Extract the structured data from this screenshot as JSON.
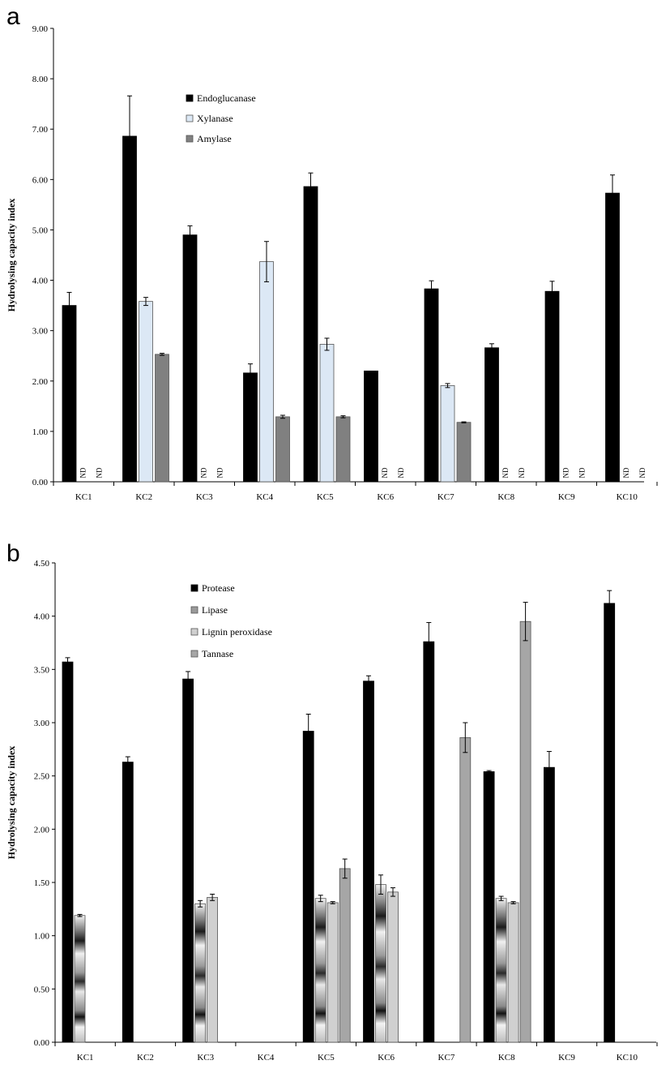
{
  "chart_data": [
    {
      "panel_label": "a",
      "type": "bar",
      "ylabel": "Hydrolysing capacity index",
      "ylim": [
        0,
        9
      ],
      "yticks": [
        "0.00",
        "1.00",
        "2.00",
        "3.00",
        "4.00",
        "5.00",
        "6.00",
        "7.00",
        "8.00",
        "9.00"
      ],
      "categories": [
        "KC1",
        "KC2",
        "KC3",
        "KC4",
        "KC5",
        "KC6",
        "KC7",
        "KC8",
        "KC9",
        "KC10"
      ],
      "not_detected_label": "ND",
      "legend_placement": "upper-left",
      "series": [
        {
          "name": "Endoglucanase",
          "color": "#000000",
          "values": [
            3.5,
            6.86,
            4.9,
            2.16,
            5.86,
            2.2,
            3.83,
            2.66,
            3.78,
            5.73
          ],
          "errors": [
            0.26,
            0.8,
            0.18,
            0.18,
            0.27,
            0.0,
            0.16,
            0.08,
            0.2,
            0.36
          ]
        },
        {
          "name": "Xylanase",
          "color": "#dce8f5",
          "values": [
            null,
            3.58,
            null,
            4.37,
            2.73,
            null,
            1.91,
            null,
            null,
            null
          ],
          "errors": [
            null,
            0.08,
            null,
            0.4,
            0.12,
            null,
            0.04,
            null,
            null,
            null
          ]
        },
        {
          "name": "Amylase",
          "color": "#808080",
          "values": [
            null,
            2.53,
            null,
            1.29,
            1.29,
            null,
            1.18,
            null,
            null,
            null
          ],
          "errors": [
            null,
            0.02,
            null,
            0.03,
            0.02,
            null,
            0.01,
            null,
            null,
            null
          ]
        }
      ]
    },
    {
      "panel_label": "b",
      "type": "bar",
      "ylabel": "Hydrolysing capacity index",
      "ylim": [
        0,
        4.5
      ],
      "yticks": [
        "0.00",
        "0.50",
        "1.00",
        "1.50",
        "2.00",
        "2.50",
        "3.00",
        "3.50",
        "4.00",
        "4.50"
      ],
      "categories": [
        "KC1",
        "KC2",
        "KC3",
        "KC4",
        "KC5",
        "KC6",
        "KC7",
        "KC8",
        "KC9",
        "KC10"
      ],
      "legend_placement": "upper-left",
      "series": [
        {
          "name": "Protease",
          "color": "#000000",
          "values": [
            3.57,
            2.63,
            3.41,
            null,
            2.92,
            3.39,
            3.76,
            2.54,
            2.58,
            4.12
          ],
          "errors": [
            0.04,
            0.05,
            0.07,
            null,
            0.16,
            0.05,
            0.18,
            0.01,
            0.15,
            0.12
          ]
        },
        {
          "name": "Lipase",
          "color": "#9a9a9a",
          "values": [
            1.19,
            null,
            1.3,
            null,
            1.35,
            1.48,
            null,
            1.35,
            null,
            null
          ],
          "errors": [
            0.01,
            null,
            0.03,
            null,
            0.03,
            0.09,
            null,
            0.02,
            null,
            null
          ]
        },
        {
          "name": "Lignin peroxidase",
          "color": "#d0d0d0",
          "values": [
            null,
            null,
            1.36,
            null,
            1.31,
            1.41,
            null,
            1.31,
            null,
            null
          ],
          "errors": [
            null,
            null,
            0.03,
            null,
            0.01,
            0.04,
            null,
            0.01,
            null,
            null
          ]
        },
        {
          "name": "Tannase",
          "color": "#a6a6a6",
          "values": [
            null,
            null,
            null,
            null,
            1.63,
            null,
            2.86,
            3.95,
            null,
            null
          ],
          "errors": [
            null,
            null,
            null,
            null,
            0.09,
            null,
            0.14,
            0.18,
            null,
            null
          ]
        }
      ]
    }
  ]
}
